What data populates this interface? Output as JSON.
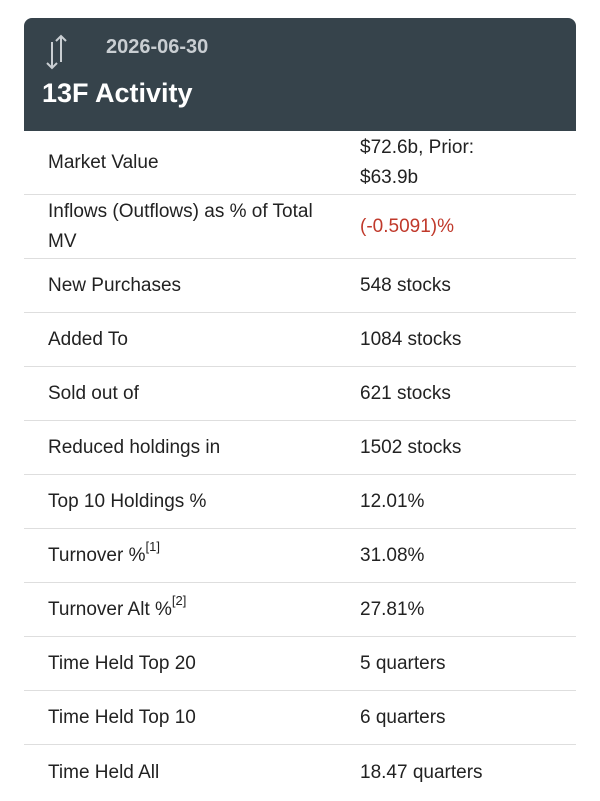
{
  "header": {
    "date": "2026-06-30",
    "title": "13F Activity"
  },
  "table": {
    "rows": [
      {
        "label": "Market Value",
        "value": "$72.6b, Prior: $63.9b"
      },
      {
        "label": "Inflows (Outflows) as % of Total MV",
        "value": "(-0.5091)%",
        "color": "#c0392b"
      },
      {
        "label": "New Purchases",
        "value": "548 stocks"
      },
      {
        "label": "Added To",
        "value": "1084 stocks"
      },
      {
        "label": "Sold out of",
        "value": "621 stocks"
      },
      {
        "label": "Reduced holdings in",
        "value": "1502 stocks"
      },
      {
        "label": "Top 10 Holdings %",
        "value": "12.01%"
      },
      {
        "label": "Turnover %",
        "note": "[1]",
        "value": "31.08%"
      },
      {
        "label": "Turnover Alt %",
        "note": "[2]",
        "value": "27.81%"
      },
      {
        "label": "Time Held Top 20",
        "value": "5 quarters"
      },
      {
        "label": "Time Held Top 10",
        "value": "6 quarters"
      },
      {
        "label": "Time Held All",
        "value": "18.47 quarters"
      }
    ]
  }
}
